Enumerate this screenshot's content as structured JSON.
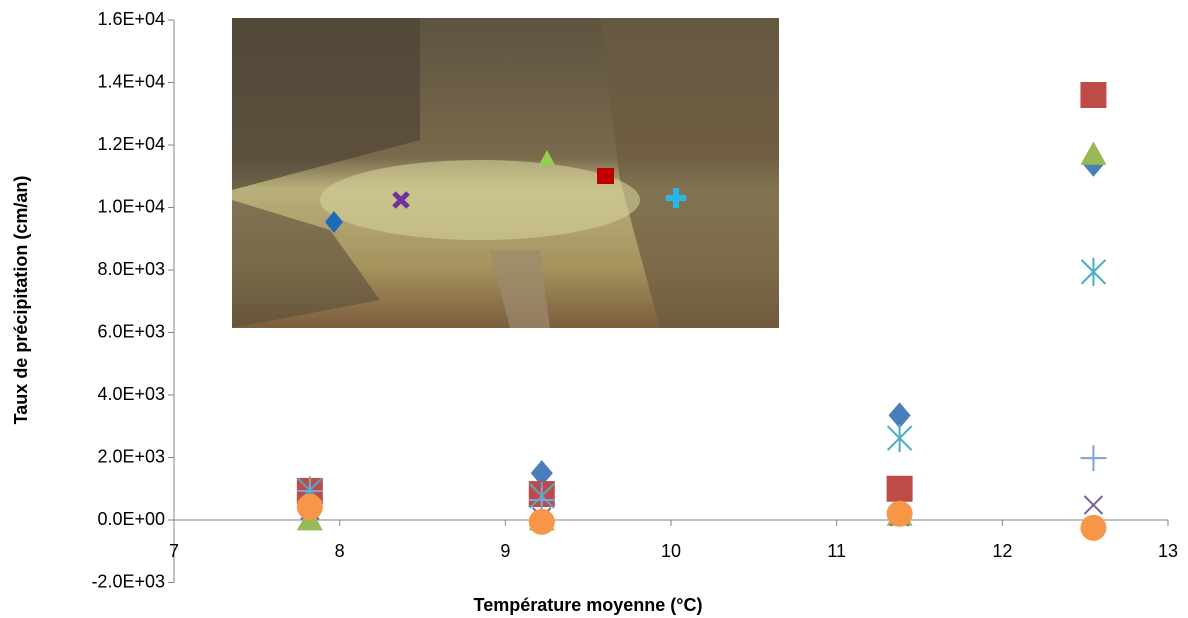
{
  "chart_data": {
    "type": "scatter",
    "x_label": "Température moyenne (°C)",
    "y_label": "Taux de précipitation (cm/an)",
    "xlim": [
      7,
      13
    ],
    "xticks": [
      7,
      8,
      9,
      10,
      11,
      12,
      13
    ],
    "ylim": [
      -2000,
      16000
    ],
    "yticks": [
      {
        "value": -2000,
        "label": "-2.0E+03"
      },
      {
        "value": 0,
        "label": "0.0E+00"
      },
      {
        "value": 2000,
        "label": "2.0E+03"
      },
      {
        "value": 4000,
        "label": "4.0E+03"
      },
      {
        "value": 6000,
        "label": "6.0E+03"
      },
      {
        "value": 8000,
        "label": "8.0E+03"
      },
      {
        "value": 10000,
        "label": "1.0E+04"
      },
      {
        "value": 12000,
        "label": "1.2E+04"
      },
      {
        "value": 14000,
        "label": "1.4E+04"
      },
      {
        "value": 16000,
        "label": "1.6E+04"
      }
    ],
    "x": [
      7.82,
      9.22,
      11.38,
      12.55
    ],
    "series": [
      {
        "marker": "diamond",
        "color": "#4a7ebb",
        "values": [
          900,
          1500,
          3350,
          11400
        ]
      },
      {
        "marker": "square",
        "color": "#be4b48",
        "values": [
          930,
          830,
          1000,
          13600
        ]
      },
      {
        "marker": "triangle",
        "color": "#98b954",
        "values": [
          0,
          0,
          150,
          11700
        ]
      },
      {
        "marker": "x",
        "color": "#7d60a0",
        "values": [
          300,
          100,
          100,
          480
        ]
      },
      {
        "marker": "asterisk",
        "color": "#4bacc6",
        "values": [
          950,
          770,
          2620,
          7940
        ]
      },
      {
        "marker": "plus",
        "color": "#7ea3d3",
        "values": [
          930,
          640,
          200,
          1980
        ]
      },
      {
        "marker": "circle",
        "color": "#f79646",
        "values": [
          420,
          -60,
          200,
          -250
        ]
      }
    ]
  }
}
